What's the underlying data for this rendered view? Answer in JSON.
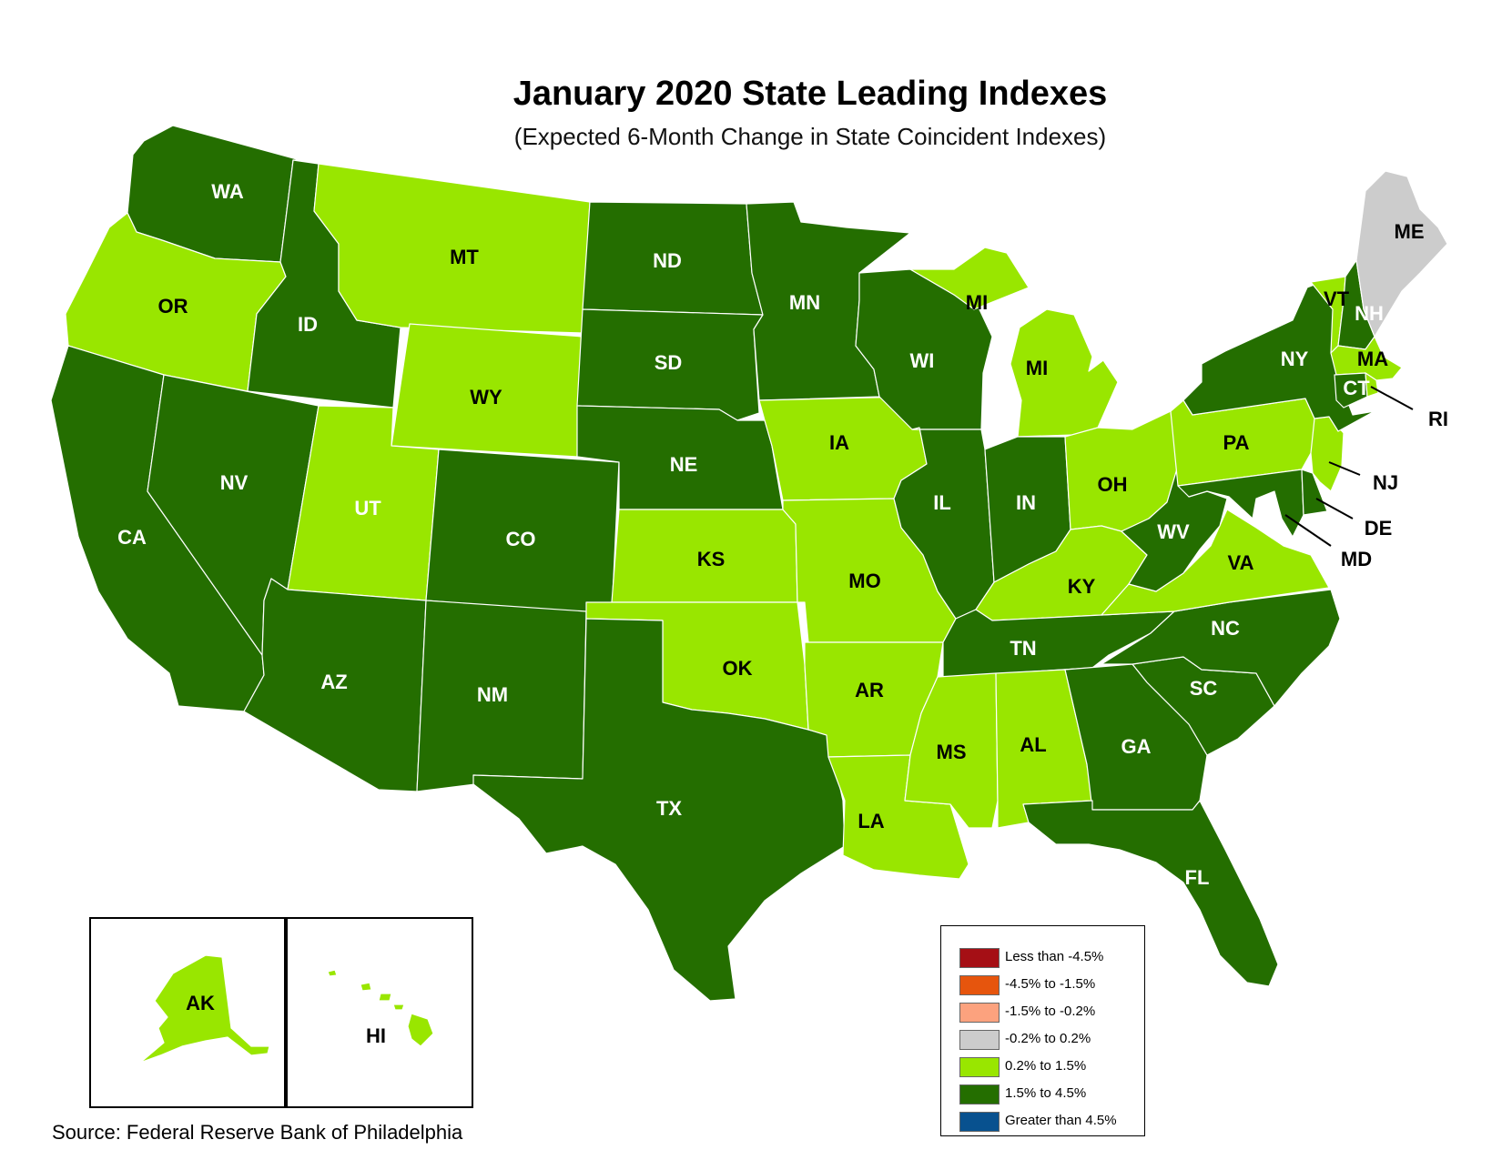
{
  "title": "January 2020 State Leading Indexes",
  "subtitle": "(Expected 6-Month Change in State Coincident Indexes)",
  "source": "Source: Federal Reserve Bank of Philadelphia",
  "colors": {
    "less_than_neg_4_5": "#a50f15",
    "neg_4_5_to_neg_1_5": "#e6550d",
    "neg_1_5_to_neg_0_2": "#fca27e",
    "neg_0_2_to_0_2": "#cccccc",
    "0_2_to_1_5": "#99e600",
    "1_5_to_4_5": "#246e00",
    "greater_than_4_5": "#08518f"
  },
  "legend": [
    {
      "label": "Less than -4.5%",
      "color": "#a50f15"
    },
    {
      "label": "-4.5% to -1.5%",
      "color": "#e6550d"
    },
    {
      "label": "-1.5% to -0.2%",
      "color": "#fca27e"
    },
    {
      "label": "-0.2% to 0.2%",
      "color": "#cccccc"
    },
    {
      "label": "0.2% to 1.5%",
      "color": "#99e600"
    },
    {
      "label": "1.5% to 4.5%",
      "color": "#246e00"
    },
    {
      "label": "Greater than 4.5%",
      "color": "#08518f"
    }
  ],
  "states": {
    "WA": {
      "label": "WA",
      "category": "1.5% to 4.5%"
    },
    "OR": {
      "label": "OR",
      "category": "0.2% to 1.5%"
    },
    "CA": {
      "label": "CA",
      "category": "1.5% to 4.5%"
    },
    "ID": {
      "label": "ID",
      "category": "1.5% to 4.5%"
    },
    "NV": {
      "label": "NV",
      "category": "1.5% to 4.5%"
    },
    "MT": {
      "label": "MT",
      "category": "0.2% to 1.5%"
    },
    "WY": {
      "label": "WY",
      "category": "0.2% to 1.5%"
    },
    "UT": {
      "label": "UT",
      "category": "0.2% to 1.5%"
    },
    "AZ": {
      "label": "AZ",
      "category": "1.5% to 4.5%"
    },
    "CO": {
      "label": "CO",
      "category": "1.5% to 4.5%"
    },
    "NM": {
      "label": "NM",
      "category": "1.5% to 4.5%"
    },
    "ND": {
      "label": "ND",
      "category": "1.5% to 4.5%"
    },
    "SD": {
      "label": "SD",
      "category": "1.5% to 4.5%"
    },
    "NE": {
      "label": "NE",
      "category": "1.5% to 4.5%"
    },
    "KS": {
      "label": "KS",
      "category": "0.2% to 1.5%"
    },
    "OK": {
      "label": "OK",
      "category": "0.2% to 1.5%"
    },
    "TX": {
      "label": "TX",
      "category": "1.5% to 4.5%"
    },
    "MN": {
      "label": "MN",
      "category": "1.5% to 4.5%"
    },
    "IA": {
      "label": "IA",
      "category": "0.2% to 1.5%"
    },
    "MO": {
      "label": "MO",
      "category": "0.2% to 1.5%"
    },
    "AR": {
      "label": "AR",
      "category": "0.2% to 1.5%"
    },
    "LA": {
      "label": "LA",
      "category": "0.2% to 1.5%"
    },
    "WI": {
      "label": "WI",
      "category": "1.5% to 4.5%"
    },
    "IL": {
      "label": "IL",
      "category": "1.5% to 4.5%"
    },
    "MI": {
      "label": "MI",
      "category": "0.2% to 1.5%"
    },
    "IN": {
      "label": "IN",
      "category": "1.5% to 4.5%"
    },
    "OH": {
      "label": "OH",
      "category": "0.2% to 1.5%"
    },
    "KY": {
      "label": "KY",
      "category": "0.2% to 1.5%"
    },
    "TN": {
      "label": "TN",
      "category": "1.5% to 4.5%"
    },
    "MS": {
      "label": "MS",
      "category": "0.2% to 1.5%"
    },
    "AL": {
      "label": "AL",
      "category": "0.2% to 1.5%"
    },
    "GA": {
      "label": "GA",
      "category": "1.5% to 4.5%"
    },
    "FL": {
      "label": "FL",
      "category": "1.5% to 4.5%"
    },
    "SC": {
      "label": "SC",
      "category": "1.5% to 4.5%"
    },
    "NC": {
      "label": "NC",
      "category": "1.5% to 4.5%"
    },
    "VA": {
      "label": "VA",
      "category": "0.2% to 1.5%"
    },
    "WV": {
      "label": "WV",
      "category": "1.5% to 4.5%"
    },
    "PA": {
      "label": "PA",
      "category": "0.2% to 1.5%"
    },
    "NY": {
      "label": "NY",
      "category": "1.5% to 4.5%"
    },
    "VT": {
      "label": "VT",
      "category": "0.2% to 1.5%"
    },
    "NH": {
      "label": "NH",
      "category": "1.5% to 4.5%"
    },
    "ME": {
      "label": "ME",
      "category": "-0.2% to 0.2%"
    },
    "MA": {
      "label": "MA",
      "category": "0.2% to 1.5%"
    },
    "CT": {
      "label": "CT",
      "category": "1.5% to 4.5%"
    },
    "RI": {
      "label": "RI",
      "category": "0.2% to 1.5%"
    },
    "NJ": {
      "label": "NJ",
      "category": "0.2% to 1.5%"
    },
    "DE": {
      "label": "DE",
      "category": "1.5% to 4.5%"
    },
    "MD": {
      "label": "MD",
      "category": "1.5% to 4.5%"
    },
    "AK": {
      "label": "AK",
      "category": "0.2% to 1.5%"
    },
    "HI": {
      "label": "HI",
      "category": "0.2% to 1.5%"
    }
  }
}
